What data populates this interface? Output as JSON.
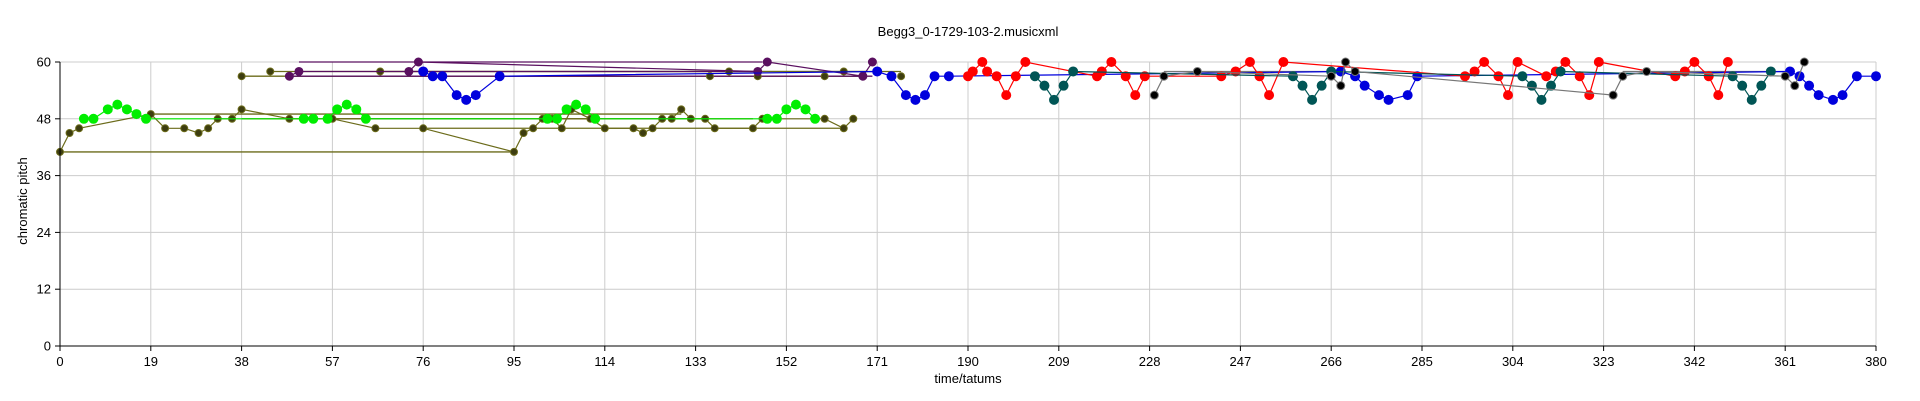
{
  "chart_data": {
    "type": "scatter",
    "title": "Begg3_0-1729-103-2.musicxml",
    "xlabel": "time/tatums",
    "ylabel": "chromatic pitch",
    "xlim": [
      0,
      380
    ],
    "ylim": [
      0,
      60
    ],
    "xticks": [
      0,
      19,
      38,
      57,
      76,
      95,
      114,
      133,
      152,
      171,
      190,
      209,
      228,
      247,
      266,
      285,
      304,
      323,
      342,
      361,
      380
    ],
    "yticks": [
      0,
      12,
      24,
      36,
      48,
      60
    ],
    "grid": true,
    "colors": {
      "olive": "#6b6b1a",
      "olive_dark": "#3d3d10",
      "green": "#00ee00",
      "purple": "#5a1060",
      "blue": "#0000dd",
      "red": "#ff0000",
      "teal": "#005555",
      "black": "#000000",
      "gray": "#777777"
    },
    "layers": [
      {
        "color": "olive",
        "marker": "olive_dark",
        "size": 3.5,
        "lines": true,
        "x": [
          0,
          2,
          4,
          19,
          22,
          26,
          29,
          31,
          33,
          36,
          38,
          48,
          57,
          66,
          76,
          95,
          97,
          99,
          101,
          103,
          105,
          107,
          111,
          114,
          120,
          122,
          124,
          126,
          128,
          130,
          132,
          135,
          137,
          145,
          147,
          158,
          160,
          164,
          166
        ],
        "y": [
          41,
          45,
          46,
          49,
          46,
          46,
          45,
          46,
          48,
          48,
          50,
          48,
          48,
          46,
          46,
          41,
          45,
          46,
          48,
          48,
          46,
          50,
          48,
          46,
          46,
          45,
          46,
          48,
          48,
          50,
          48,
          48,
          46,
          46,
          48,
          48,
          48,
          46,
          48
        ]
      },
      {
        "color": "olive",
        "marker": "olive_dark",
        "size": 3.5,
        "lines": false,
        "x": [
          38,
          44,
          67,
          136,
          140,
          146,
          160,
          164,
          176
        ],
        "y": [
          57,
          58,
          58,
          57,
          58,
          57,
          57,
          58,
          57
        ]
      },
      {
        "color": "green",
        "marker": "green",
        "size": 4.5,
        "lines": true,
        "x": [
          5,
          7,
          10,
          12,
          14,
          16,
          18,
          51,
          53,
          56,
          58,
          60,
          62,
          64,
          102,
          104,
          106,
          108,
          110,
          112,
          148,
          150,
          152,
          154,
          156,
          158
        ],
        "y": [
          48,
          48,
          50,
          51,
          50,
          49,
          48,
          48,
          48,
          48,
          50,
          51,
          50,
          48,
          48,
          48,
          50,
          51,
          50,
          48,
          48,
          48,
          50,
          51,
          50,
          48
        ]
      },
      {
        "color": "purple",
        "marker": "purple",
        "size": 4,
        "lines": true,
        "x": [
          48,
          50,
          73,
          75,
          146,
          148,
          168,
          170
        ],
        "y": [
          57,
          58,
          58,
          60,
          58,
          60,
          57,
          60
        ]
      },
      {
        "color": "blue",
        "marker": "blue",
        "size": 4.5,
        "lines": true,
        "x": [
          76,
          78,
          80,
          83,
          85,
          87,
          92,
          171,
          174,
          177,
          179,
          181,
          183,
          186,
          268,
          271,
          273,
          276,
          278,
          282,
          284,
          362,
          364,
          366,
          368,
          371,
          373,
          376,
          380
        ],
        "y": [
          58,
          57,
          57,
          53,
          52,
          53,
          57,
          58,
          57,
          53,
          52,
          53,
          57,
          57,
          58,
          57,
          55,
          53,
          52,
          53,
          57,
          58,
          57,
          55,
          53,
          52,
          53,
          57,
          57
        ]
      },
      {
        "color": "red",
        "marker": "red",
        "size": 4.5,
        "lines": true,
        "x": [
          190,
          191,
          193,
          194,
          196,
          198,
          200,
          202,
          217,
          218,
          220,
          223,
          225,
          227,
          243,
          246,
          249,
          251,
          253,
          256,
          294,
          296,
          298,
          301,
          303,
          305,
          311,
          313,
          315,
          318,
          320,
          322,
          338,
          340,
          342,
          345,
          347,
          349
        ],
        "y": [
          57,
          58,
          60,
          58,
          57,
          53,
          57,
          60,
          57,
          58,
          60,
          57,
          53,
          57,
          57,
          58,
          60,
          57,
          53,
          60,
          57,
          58,
          60,
          57,
          53,
          60,
          57,
          58,
          60,
          57,
          53,
          60,
          57,
          58,
          60,
          57,
          53,
          60
        ]
      },
      {
        "color": "teal",
        "marker": "teal",
        "size": 4.5,
        "lines": true,
        "x": [
          204,
          206,
          208,
          210,
          212,
          258,
          260,
          262,
          264,
          266,
          306,
          308,
          310,
          312,
          314,
          350,
          352,
          354,
          356,
          358
        ],
        "y": [
          57,
          55,
          52,
          55,
          58,
          57,
          55,
          52,
          55,
          58,
          57,
          55,
          52,
          55,
          58,
          57,
          55,
          52,
          55,
          58
        ]
      },
      {
        "color": "gray",
        "marker": "black",
        "size": 4,
        "lines": true,
        "x": [
          229,
          231,
          238,
          266,
          268,
          269,
          271,
          325,
          327,
          332,
          361,
          363,
          365
        ],
        "y": [
          53,
          57,
          58,
          57,
          55,
          60,
          58,
          53,
          57,
          58,
          57,
          55,
          60
        ]
      }
    ],
    "sustains": [
      {
        "color": "olive",
        "x": [
          0,
          95
        ],
        "y": 41
      },
      {
        "color": "olive",
        "x": [
          19,
          130
        ],
        "y": 49
      },
      {
        "color": "olive",
        "x": [
          38,
          135
        ],
        "y": 48
      },
      {
        "color": "olive",
        "x": [
          57,
          145
        ],
        "y": 48
      },
      {
        "color": "olive",
        "x": [
          76,
          164
        ],
        "y": 46
      },
      {
        "color": "olive",
        "x": [
          38,
          168
        ],
        "y": 57
      },
      {
        "color": "olive",
        "x": [
          44,
          169
        ],
        "y": 58
      },
      {
        "color": "olive",
        "x": [
          67,
          176
        ],
        "y": 58
      },
      {
        "color": "purple",
        "x": [
          50,
          147
        ],
        "y": 60
      },
      {
        "color": "purple",
        "x": [
          48,
          170
        ],
        "y": 57
      },
      {
        "color": "purple",
        "x": [
          73,
          146
        ],
        "y": 58
      },
      {
        "color": "gray",
        "x": [
          231,
          269
        ],
        "y": 58
      },
      {
        "color": "gray",
        "x": [
          327,
          363
        ],
        "y": 58
      }
    ]
  }
}
